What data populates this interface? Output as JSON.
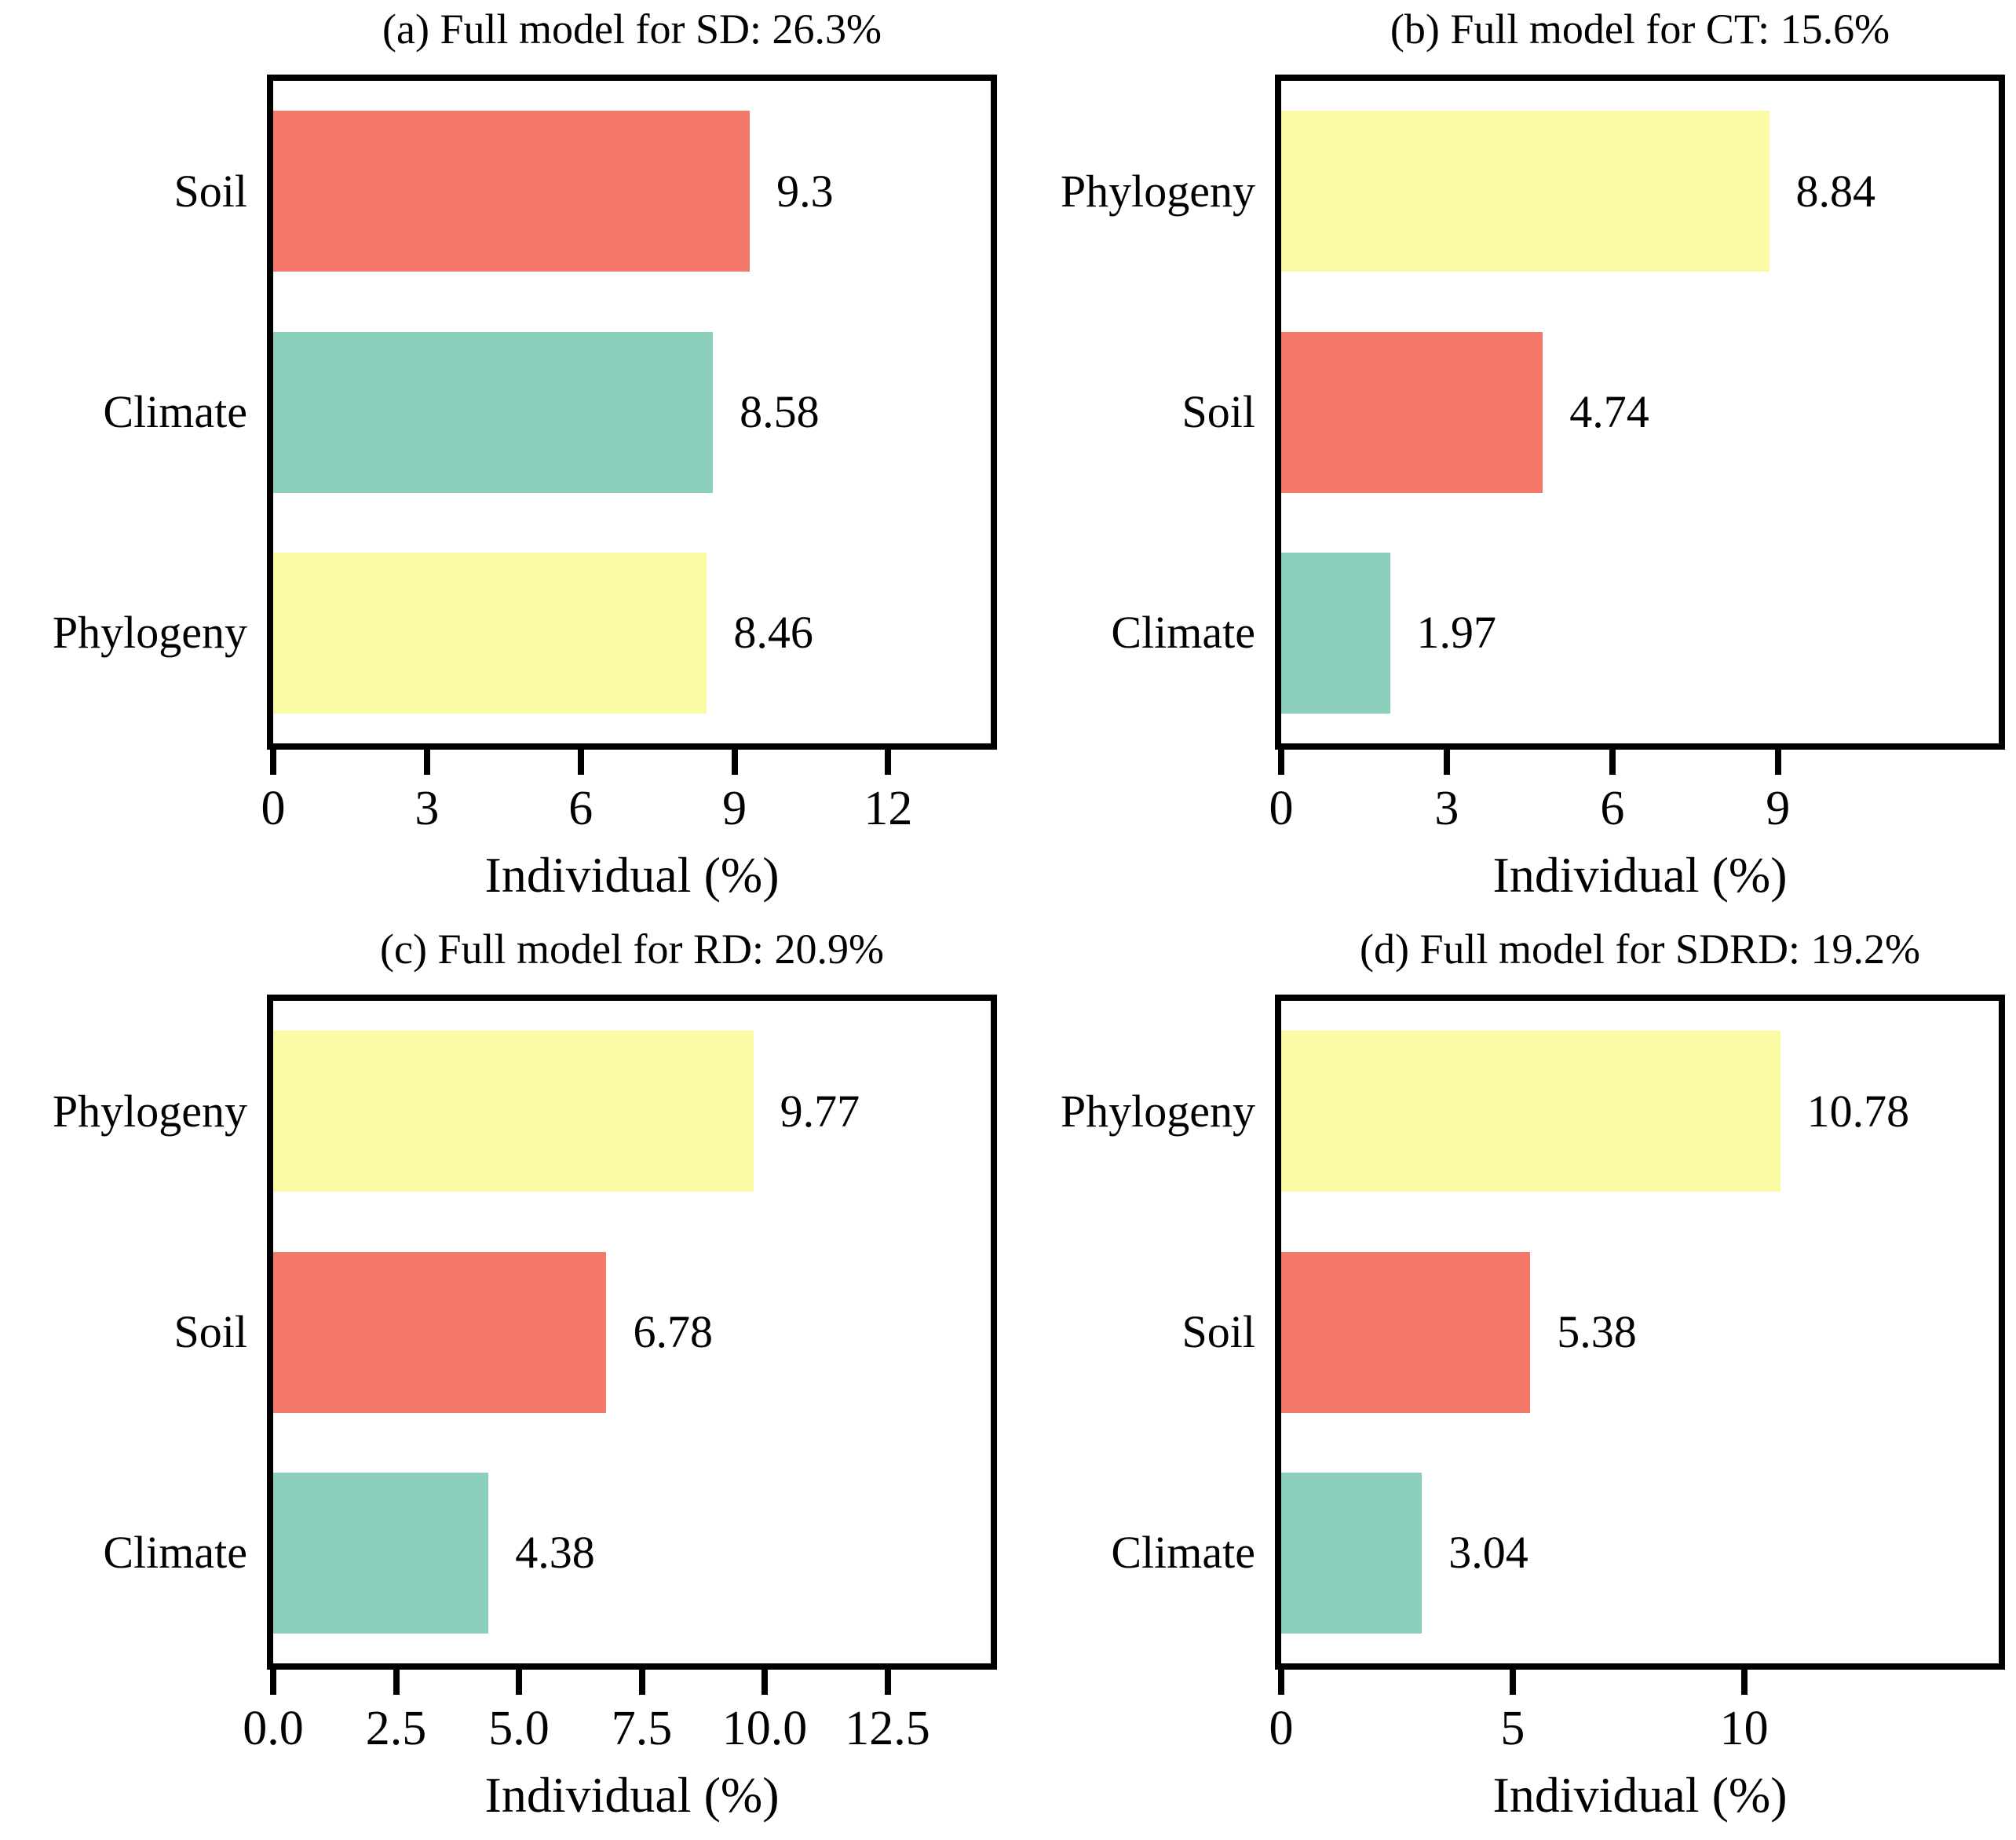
{
  "figure": {
    "type": "2x2-horizontal-bar-grid",
    "x_axis_label": "Individual (%)",
    "colors": {
      "soil": "#F5796A",
      "climate": "#8CCFBD",
      "phylogeny": "#FBFBA6"
    }
  },
  "chart_data": [
    {
      "type": "bar",
      "orientation": "horizontal",
      "title": "(a) Full model for SD: 26.3%",
      "full_model_value": "26.3%",
      "categories": [
        "Soil",
        "Climate",
        "Phylogeny"
      ],
      "values": [
        9.3,
        8.58,
        8.46
      ],
      "value_labels": [
        "9.3",
        "8.58",
        "8.46"
      ],
      "bar_colors": [
        "#F5796A",
        "#8CCFBD",
        "#FBFBA6"
      ],
      "xlabel": "Individual (%)",
      "xlim": [
        0,
        14
      ],
      "xtick_values": [
        0,
        3,
        6,
        9,
        12
      ],
      "xtick_labels": [
        "0",
        "3",
        "6",
        "9",
        "12"
      ],
      "grid": false,
      "legend": "none"
    },
    {
      "type": "bar",
      "orientation": "horizontal",
      "title": "(b) Full model for CT: 15.6%",
      "full_model_value": "15.6%",
      "categories": [
        "Phylogeny",
        "Soil",
        "Climate"
      ],
      "values": [
        8.84,
        4.74,
        1.97
      ],
      "value_labels": [
        "8.84",
        "4.74",
        "1.97"
      ],
      "bar_colors": [
        "#FBFBA6",
        "#F5796A",
        "#8CCFBD"
      ],
      "xlabel": "Individual (%)",
      "xlim": [
        0,
        13
      ],
      "xtick_values": [
        0,
        3,
        6,
        9
      ],
      "xtick_labels": [
        "0",
        "3",
        "6",
        "9"
      ],
      "grid": false,
      "legend": "none"
    },
    {
      "type": "bar",
      "orientation": "horizontal",
      "title": "(c) Full model for RD: 20.9%",
      "full_model_value": "20.9%",
      "categories": [
        "Phylogeny",
        "Soil",
        "Climate"
      ],
      "values": [
        9.77,
        6.78,
        4.38
      ],
      "value_labels": [
        "9.77",
        "6.78",
        "4.38"
      ],
      "bar_colors": [
        "#FBFBA6",
        "#F5796A",
        "#8CCFBD"
      ],
      "xlabel": "Individual (%)",
      "xlim": [
        0,
        14.6
      ],
      "xtick_values": [
        0,
        2.5,
        5,
        7.5,
        10,
        12.5
      ],
      "xtick_labels": [
        "0.0",
        "2.5",
        "5.0",
        "7.5",
        "10.0",
        "12.5"
      ],
      "grid": false,
      "legend": "none"
    },
    {
      "type": "bar",
      "orientation": "horizontal",
      "title": "(d) Full model for SDRD: 19.2%",
      "full_model_value": "19.2%",
      "categories": [
        "Phylogeny",
        "Soil",
        "Climate"
      ],
      "values": [
        10.78,
        5.38,
        3.04
      ],
      "value_labels": [
        "10.78",
        "5.38",
        "3.04"
      ],
      "bar_colors": [
        "#FBFBA6",
        "#F5796A",
        "#8CCFBD"
      ],
      "xlabel": "Individual (%)",
      "xlim": [
        0,
        15.5
      ],
      "xtick_values": [
        0,
        5,
        10
      ],
      "xtick_labels": [
        "0",
        "5",
        "10"
      ],
      "grid": false,
      "legend": "none"
    }
  ]
}
